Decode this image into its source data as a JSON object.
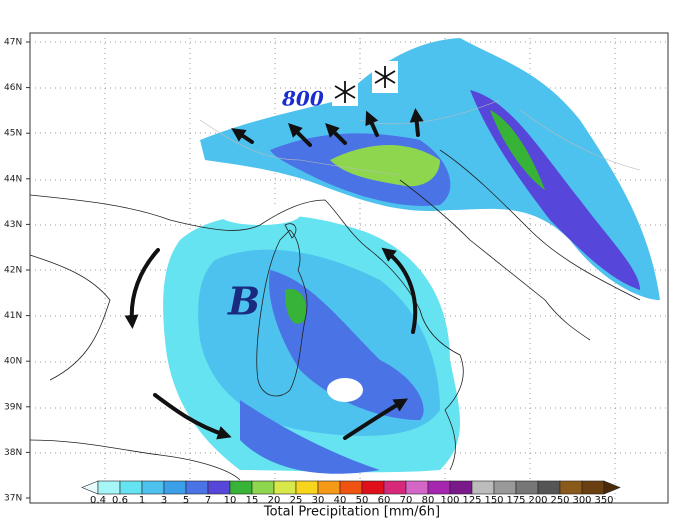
{
  "map": {
    "lat_labels": [
      "47N",
      "46N",
      "45N",
      "44N",
      "43N",
      "42N",
      "41N",
      "40N",
      "39N",
      "38N",
      "37N"
    ],
    "annotations": {
      "level": "800",
      "low": "B"
    },
    "colorbar": {
      "title": "Total Precipitation [mm/6h]",
      "levels": [
        "0.4",
        "0.6",
        "1",
        "3",
        "5",
        "7",
        "10",
        "15",
        "20",
        "25",
        "30",
        "40",
        "50",
        "60",
        "70",
        "80",
        "100",
        "125",
        "150",
        "175",
        "200",
        "250",
        "300",
        "350"
      ],
      "colors": [
        "#e8fcfc",
        "#a6f5f7",
        "#66e3f0",
        "#4ec2ee",
        "#3ca0e8",
        "#4a73e6",
        "#5646d9",
        "#37b337",
        "#8fd64f",
        "#d8e84a",
        "#f7d51c",
        "#f59a16",
        "#f0520f",
        "#e0101a",
        "#d8287a",
        "#d466c8",
        "#a626b0",
        "#7a1a8a",
        "#bcbcbc",
        "#999999",
        "#777777",
        "#555555",
        "#8a5a1a",
        "#6a4010",
        "#4a2a08"
      ]
    }
  }
}
